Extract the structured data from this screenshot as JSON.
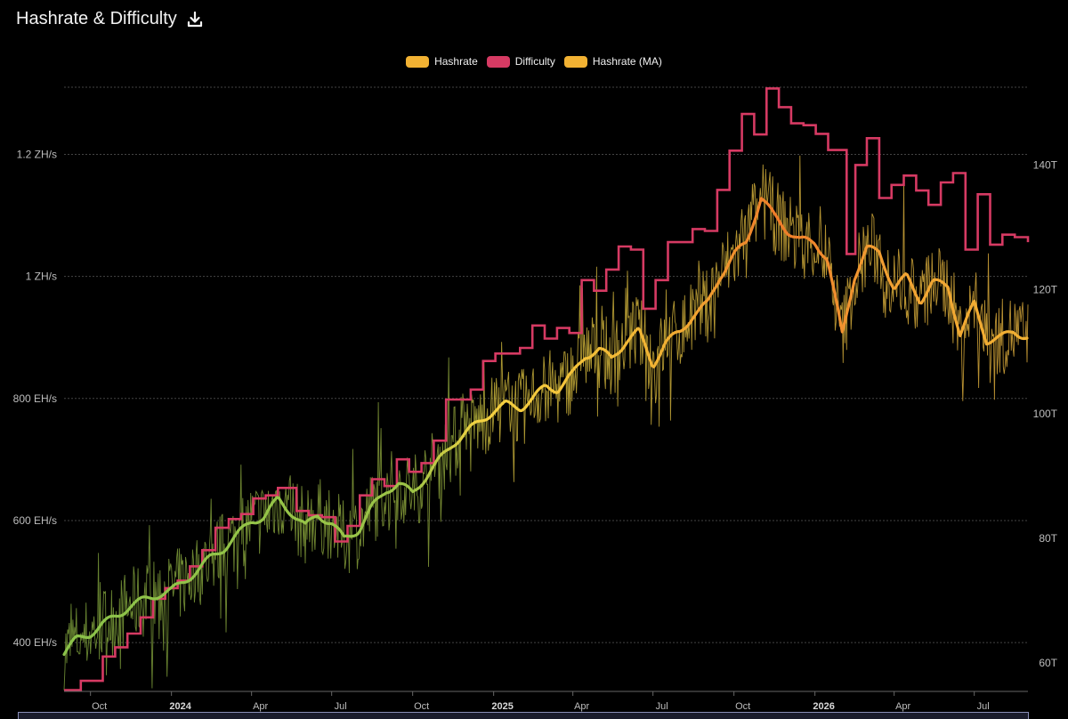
{
  "header": {
    "title": "Hashrate & Difficulty",
    "download_icon": "download-icon"
  },
  "legend": [
    {
      "label": "Hashrate",
      "color": "#f2b233"
    },
    {
      "label": "Difficulty",
      "color": "#d63a63"
    },
    {
      "label": "Hashrate (MA)",
      "color": "#f2b233"
    }
  ],
  "chart_data": {
    "type": "line",
    "title": "Hashrate & Difficulty",
    "x_range": [
      "2023-09-01",
      "2026-08-31"
    ],
    "x_tick_labels": [
      {
        "date": "2023-10-01",
        "label": "Oct",
        "bold": false
      },
      {
        "date": "2024-01-01",
        "label": "2024",
        "bold": true
      },
      {
        "date": "2024-04-01",
        "label": "Apr",
        "bold": false
      },
      {
        "date": "2024-07-01",
        "label": "Jul",
        "bold": false
      },
      {
        "date": "2024-10-01",
        "label": "Oct",
        "bold": false
      },
      {
        "date": "2025-01-01",
        "label": "2025",
        "bold": true
      },
      {
        "date": "2025-04-01",
        "label": "Apr",
        "bold": false
      },
      {
        "date": "2025-07-01",
        "label": "Jul",
        "bold": false
      },
      {
        "date": "2025-10-01",
        "label": "Oct",
        "bold": false
      },
      {
        "date": "2026-01-01",
        "label": "2026",
        "bold": true
      },
      {
        "date": "2026-04-01",
        "label": "Apr",
        "bold": false
      },
      {
        "date": "2026-07-01",
        "label": "Jul",
        "bold": false
      }
    ],
    "y_left": {
      "unit": "EH/s",
      "range": [
        320,
        1310
      ],
      "ticks": [
        {
          "value": 400,
          "label": "400 EH/s"
        },
        {
          "value": 600,
          "label": "600 EH/s"
        },
        {
          "value": 800,
          "label": "800 EH/s"
        },
        {
          "value": 1000,
          "label": "1 ZH/s"
        },
        {
          "value": 1200,
          "label": "1.2 ZH/s"
        }
      ]
    },
    "y_right": {
      "unit": "T",
      "range": [
        55.4,
        152.5
      ],
      "ticks": [
        {
          "value": 60,
          "label": "60T"
        },
        {
          "value": 80,
          "label": "80T"
        },
        {
          "value": 100,
          "label": "100T"
        },
        {
          "value": 120,
          "label": "120T"
        },
        {
          "value": 140,
          "label": "140T"
        }
      ]
    },
    "grid": true,
    "legend_position": "top-center",
    "series": [
      {
        "name": "Hashrate (MA)",
        "axis": "left",
        "color_gradient": [
          "#8bc34a",
          "#f5d342",
          "#f2b233",
          "#f07c2a"
        ],
        "points": [
          [
            "2023-09-01",
            383
          ],
          [
            "2023-09-15",
            405
          ],
          [
            "2023-10-01",
            415
          ],
          [
            "2023-10-15",
            430
          ],
          [
            "2023-11-01",
            445
          ],
          [
            "2023-11-15",
            460
          ],
          [
            "2023-12-01",
            470
          ],
          [
            "2023-12-15",
            478
          ],
          [
            "2024-01-01",
            485
          ],
          [
            "2024-01-15",
            500
          ],
          [
            "2024-02-01",
            520
          ],
          [
            "2024-02-15",
            540
          ],
          [
            "2024-03-01",
            555
          ],
          [
            "2024-03-15",
            575
          ],
          [
            "2024-04-01",
            600
          ],
          [
            "2024-04-15",
            605
          ],
          [
            "2024-05-01",
            635
          ],
          [
            "2024-05-15",
            615
          ],
          [
            "2024-06-01",
            590
          ],
          [
            "2024-06-15",
            610
          ],
          [
            "2024-07-01",
            595
          ],
          [
            "2024-07-15",
            570
          ],
          [
            "2024-08-01",
            585
          ],
          [
            "2024-08-15",
            620
          ],
          [
            "2024-09-01",
            650
          ],
          [
            "2024-09-15",
            660
          ],
          [
            "2024-10-01",
            645
          ],
          [
            "2024-10-15",
            670
          ],
          [
            "2024-11-01",
            700
          ],
          [
            "2024-11-15",
            725
          ],
          [
            "2024-12-01",
            745
          ],
          [
            "2024-12-15",
            760
          ],
          [
            "2025-01-01",
            780
          ],
          [
            "2025-01-15",
            790
          ],
          [
            "2025-02-01",
            785
          ],
          [
            "2025-02-15",
            800
          ],
          [
            "2025-03-01",
            820
          ],
          [
            "2025-03-15",
            815
          ],
          [
            "2025-04-01",
            840
          ],
          [
            "2025-04-15",
            870
          ],
          [
            "2025-05-01",
            880
          ],
          [
            "2025-05-15",
            865
          ],
          [
            "2025-06-01",
            895
          ],
          [
            "2025-06-15",
            910
          ],
          [
            "2025-07-01",
            855
          ],
          [
            "2025-07-15",
            890
          ],
          [
            "2025-08-01",
            910
          ],
          [
            "2025-08-15",
            935
          ],
          [
            "2025-09-01",
            955
          ],
          [
            "2025-09-15",
            1000
          ],
          [
            "2025-10-01",
            1035
          ],
          [
            "2025-10-15",
            1055
          ],
          [
            "2025-11-01",
            1130
          ],
          [
            "2025-11-15",
            1100
          ],
          [
            "2025-12-01",
            1075
          ],
          [
            "2025-12-15",
            1060
          ],
          [
            "2026-01-01",
            1055
          ],
          [
            "2026-01-15",
            1030
          ],
          [
            "2026-02-01",
            905
          ],
          [
            "2026-02-15",
            1000
          ],
          [
            "2026-03-01",
            1045
          ],
          [
            "2026-03-15",
            1040
          ],
          [
            "2026-04-01",
            980
          ],
          [
            "2026-04-15",
            1000
          ],
          [
            "2026-05-01",
            960
          ],
          [
            "2026-05-15",
            990
          ],
          [
            "2026-06-01",
            985
          ],
          [
            "2026-06-15",
            905
          ],
          [
            "2026-07-01",
            955
          ],
          [
            "2026-07-15",
            895
          ],
          [
            "2026-08-01",
            900
          ],
          [
            "2026-08-15",
            910
          ],
          [
            "2026-08-31",
            900
          ]
        ]
      },
      {
        "name": "Difficulty",
        "axis": "right",
        "color": "#d63a63",
        "step": true,
        "points": [
          [
            "2023-09-01",
            55.6
          ],
          [
            "2023-09-20",
            57.1
          ],
          [
            "2023-10-15",
            61.0
          ],
          [
            "2023-10-29",
            62.5
          ],
          [
            "2023-11-12",
            64.7
          ],
          [
            "2023-11-27",
            67.3
          ],
          [
            "2023-12-11",
            70.3
          ],
          [
            "2023-12-25",
            72.0
          ],
          [
            "2024-01-08",
            73.2
          ],
          [
            "2024-01-22",
            75.5
          ],
          [
            "2024-02-05",
            78.1
          ],
          [
            "2024-02-20",
            81.7
          ],
          [
            "2024-03-06",
            83.1
          ],
          [
            "2024-03-20",
            83.9
          ],
          [
            "2024-04-03",
            86.4
          ],
          [
            "2024-04-17",
            86.9
          ],
          [
            "2024-05-01",
            88.1
          ],
          [
            "2024-05-22",
            84.4
          ],
          [
            "2024-06-05",
            83.7
          ],
          [
            "2024-06-20",
            83.4
          ],
          [
            "2024-07-05",
            79.5
          ],
          [
            "2024-07-19",
            82.0
          ],
          [
            "2024-08-02",
            86.9
          ],
          [
            "2024-08-16",
            89.5
          ],
          [
            "2024-08-30",
            88.4
          ],
          [
            "2024-09-13",
            92.7
          ],
          [
            "2024-09-27",
            90.7
          ],
          [
            "2024-10-11",
            92.1
          ],
          [
            "2024-10-25",
            95.7
          ],
          [
            "2024-11-08",
            102.3
          ],
          [
            "2024-12-06",
            103.9
          ],
          [
            "2024-12-20",
            108.5
          ],
          [
            "2025-01-03",
            109.7
          ],
          [
            "2025-01-31",
            110.6
          ],
          [
            "2025-02-14",
            114.2
          ],
          [
            "2025-02-28",
            112.1
          ],
          [
            "2025-03-14",
            113.8
          ],
          [
            "2025-03-28",
            113.0
          ],
          [
            "2025-04-11",
            121.5
          ],
          [
            "2025-04-25",
            119.8
          ],
          [
            "2025-05-09",
            123.2
          ],
          [
            "2025-05-23",
            126.9
          ],
          [
            "2025-06-06",
            126.4
          ],
          [
            "2025-06-20",
            116.9
          ],
          [
            "2025-07-04",
            121.5
          ],
          [
            "2025-07-18",
            127.6
          ],
          [
            "2025-08-01",
            127.6
          ],
          [
            "2025-08-15",
            129.7
          ],
          [
            "2025-08-29",
            129.4
          ],
          [
            "2025-09-12",
            136.0
          ],
          [
            "2025-09-26",
            142.3
          ],
          [
            "2025-10-10",
            148.2
          ],
          [
            "2025-10-24",
            144.9
          ],
          [
            "2025-11-07",
            152.3
          ],
          [
            "2025-11-21",
            149.3
          ],
          [
            "2025-12-05",
            146.7
          ],
          [
            "2025-12-19",
            146.4
          ],
          [
            "2026-01-02",
            145.0
          ],
          [
            "2026-01-16",
            142.4
          ],
          [
            "2026-02-06",
            125.7
          ],
          [
            "2026-02-16",
            140.0
          ],
          [
            "2026-03-01",
            144.3
          ],
          [
            "2026-03-15",
            134.7
          ],
          [
            "2026-03-29",
            136.8
          ],
          [
            "2026-04-12",
            138.3
          ],
          [
            "2026-04-26",
            135.9
          ],
          [
            "2026-05-10",
            133.6
          ],
          [
            "2026-05-24",
            137.2
          ],
          [
            "2026-06-07",
            138.7
          ],
          [
            "2026-06-21",
            126.4
          ],
          [
            "2026-07-05",
            135.3
          ],
          [
            "2026-07-19",
            127.2
          ],
          [
            "2026-08-02",
            128.8
          ],
          [
            "2026-08-16",
            128.4
          ],
          [
            "2026-08-31",
            127.6
          ]
        ]
      },
      {
        "name": "Hashrate",
        "axis": "left",
        "style": "thin noisy daily line around the moving average",
        "noise_amplitude": 90,
        "color_gradient": [
          "#7a9c3a",
          "#c9b23a",
          "#d9a83a"
        ]
      }
    ]
  },
  "footer": {
    "scrollbar": "range-scrollbar"
  }
}
